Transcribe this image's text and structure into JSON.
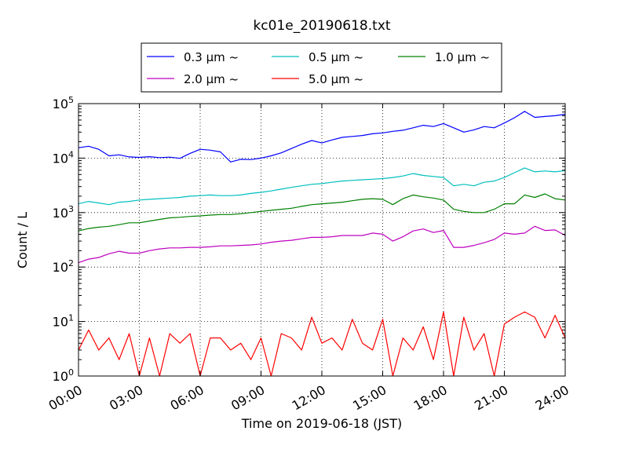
{
  "chart_data": {
    "type": "line",
    "title": "kc01e_20190618.txt",
    "xlabel": "Time on 2019-06-18 (JST)",
    "ylabel": "Count / L",
    "yscale": "log",
    "xlim": [
      0,
      24
    ],
    "ylim": [
      1,
      100000
    ],
    "grid": true,
    "legend_position": "top",
    "x_ticks": [
      "00:00",
      "03:00",
      "06:00",
      "09:00",
      "12:00",
      "15:00",
      "18:00",
      "21:00",
      "24:00"
    ],
    "y_ticks": [
      {
        "base": "10",
        "exp": "0"
      },
      {
        "base": "10",
        "exp": "1"
      },
      {
        "base": "10",
        "exp": "2"
      },
      {
        "base": "10",
        "exp": "3"
      },
      {
        "base": "10",
        "exp": "4"
      },
      {
        "base": "10",
        "exp": "5"
      }
    ],
    "x": [
      0,
      0.5,
      1,
      1.5,
      2,
      2.5,
      3,
      3.5,
      4,
      4.5,
      5,
      5.5,
      6,
      6.5,
      7,
      7.5,
      8,
      8.5,
      9,
      9.5,
      10,
      10.5,
      11,
      11.5,
      12,
      12.5,
      13,
      13.5,
      14,
      14.5,
      15,
      15.5,
      16,
      16.5,
      17,
      17.5,
      18,
      18.5,
      19,
      19.5,
      20,
      20.5,
      21,
      21.5,
      22,
      22.5,
      23,
      23.5,
      24
    ],
    "series": [
      {
        "name": "0.3 μm ~",
        "color": "#0000ff",
        "values": [
          15500,
          16500,
          14500,
          11000,
          11500,
          10500,
          10300,
          10600,
          10200,
          10400,
          9900,
          12200,
          14500,
          14000,
          13000,
          8500,
          9500,
          9400,
          10000,
          11000,
          12500,
          15000,
          18000,
          21000,
          19000,
          21500,
          24000,
          25000,
          26000,
          28000,
          29000,
          31000,
          32500,
          36000,
          40000,
          38000,
          43000,
          36000,
          30000,
          33000,
          38000,
          36000,
          44000,
          55000,
          72000,
          56000,
          58000,
          60000,
          64000
        ]
      },
      {
        "name": "0.5 μm ~",
        "color": "#00bfbf",
        "values": [
          1450,
          1600,
          1500,
          1400,
          1550,
          1600,
          1700,
          1750,
          1800,
          1850,
          1900,
          2000,
          2050,
          2100,
          2050,
          2050,
          2100,
          2250,
          2350,
          2500,
          2700,
          2900,
          3100,
          3300,
          3400,
          3600,
          3800,
          3900,
          4000,
          4100,
          4200,
          4400,
          4700,
          5200,
          4800,
          4600,
          4400,
          3100,
          3300,
          3100,
          3600,
          3800,
          4400,
          5400,
          6600,
          5600,
          5800,
          5600,
          5900
        ]
      },
      {
        "name": "1.0 μm ~",
        "color": "#008000",
        "values": [
          460,
          510,
          540,
          560,
          600,
          650,
          650,
          700,
          750,
          800,
          820,
          850,
          870,
          900,
          920,
          920,
          950,
          1000,
          1050,
          1100,
          1150,
          1200,
          1300,
          1400,
          1450,
          1500,
          1550,
          1650,
          1750,
          1800,
          1750,
          1400,
          1800,
          2100,
          1950,
          1850,
          1700,
          1150,
          1050,
          1000,
          1000,
          1150,
          1450,
          1450,
          2100,
          1900,
          2200,
          1800,
          1700
        ]
      },
      {
        "name": "2.0 μm ~",
        "color": "#bf00bf",
        "values": [
          120,
          140,
          150,
          175,
          195,
          180,
          180,
          200,
          215,
          225,
          225,
          230,
          230,
          235,
          245,
          245,
          250,
          255,
          265,
          285,
          300,
          310,
          330,
          350,
          350,
          360,
          380,
          380,
          380,
          420,
          400,
          300,
          360,
          460,
          500,
          430,
          470,
          230,
          230,
          250,
          280,
          320,
          420,
          400,
          420,
          560,
          470,
          480,
          380
        ]
      },
      {
        "name": "5.0 μm ~",
        "color": "#ff0000",
        "values": [
          3,
          7,
          3,
          5,
          2,
          6,
          1,
          5,
          1,
          6,
          4,
          6,
          1,
          5,
          5,
          3,
          4,
          2,
          5,
          1,
          6,
          5,
          3,
          12,
          4,
          5,
          3,
          11,
          4,
          3,
          11,
          1,
          5,
          3,
          8,
          2,
          15,
          1,
          12,
          3,
          6,
          1,
          9,
          12,
          15,
          12,
          5,
          13,
          5
        ]
      }
    ]
  }
}
